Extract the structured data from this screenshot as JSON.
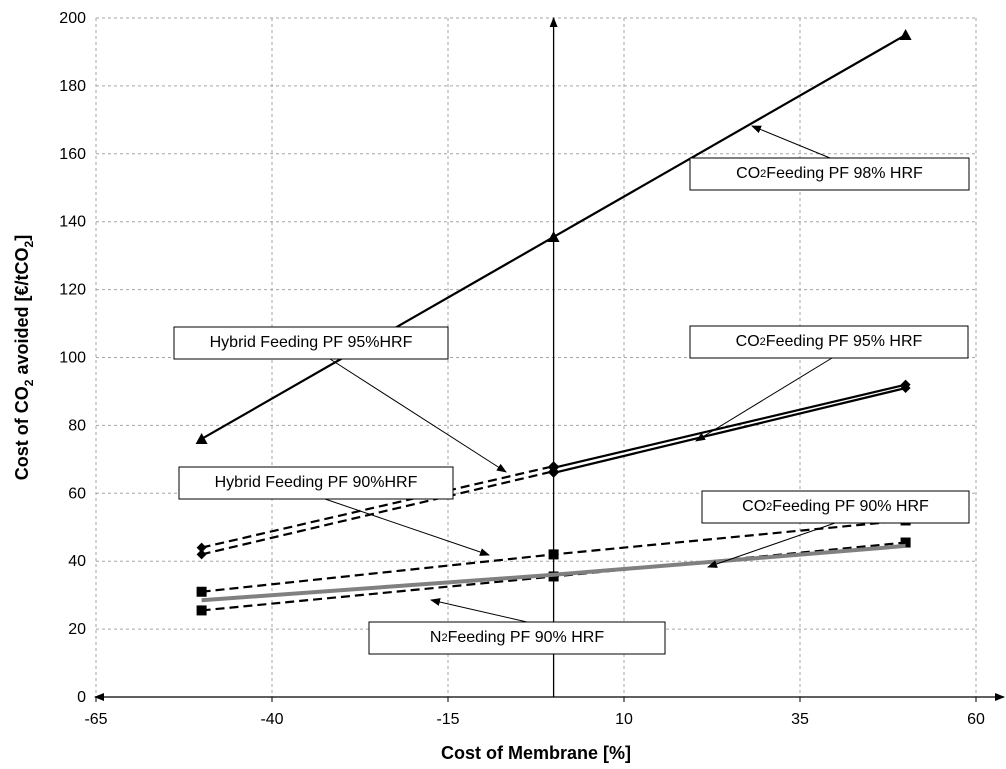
{
  "chart_data": {
    "type": "line",
    "xlabel": "Cost of Membrane [%]",
    "ylabel": "Cost of CO2 avoided [€/tCO2]",
    "xlim": [
      -65,
      60
    ],
    "ylim": [
      0,
      200
    ],
    "x_ticks": [
      -65,
      -40,
      -15,
      10,
      35,
      60
    ],
    "y_ticks": [
      0,
      20,
      40,
      60,
      80,
      100,
      120,
      140,
      160,
      180,
      200
    ],
    "grid": true,
    "series": [
      {
        "name": "CO2 Feeding PF 98% HRF",
        "x": [
          -50,
          0,
          50
        ],
        "y": [
          76,
          135.5,
          195
        ],
        "marker": "triangle",
        "dash": "solid",
        "color": "#000000"
      },
      {
        "name": "CO2 Feeding PF 95% HRF",
        "x": [
          0,
          50
        ],
        "y": [
          67.5,
          92
        ],
        "marker": "diamond",
        "dash": "solid",
        "color": "#000000"
      },
      {
        "name": "",
        "x": [
          0,
          50
        ],
        "y": [
          66,
          91
        ],
        "marker": "diamond",
        "dash": "solid",
        "color": "#000000"
      },
      {
        "name": "Hybrid Feeding PF 95%HRF",
        "x": [
          -50,
          0
        ],
        "y": [
          44,
          68
        ],
        "marker": "diamond",
        "dash": "dashed",
        "color": "#000000"
      },
      {
        "name": "",
        "x": [
          -50,
          0
        ],
        "y": [
          42,
          66.5
        ],
        "marker": "diamond",
        "dash": "dashed",
        "color": "#000000"
      },
      {
        "name": "Hybrid Feeding PF 90%HRF",
        "x": [
          -50,
          0,
          50
        ],
        "y": [
          31,
          42,
          52
        ],
        "marker": "square",
        "dash": "dashed",
        "color": "#000000"
      },
      {
        "name": "CO2 Feeding PF 90% HRF",
        "x": [
          -50,
          0,
          50
        ],
        "y": [
          25.5,
          35.5,
          45.5
        ],
        "marker": "square",
        "dash": "dashed",
        "color": "#000000"
      },
      {
        "name": "N2 Feeding PF 90% HRF",
        "x": [
          -50,
          0,
          50
        ],
        "y": [
          28.5,
          36,
          44.5
        ],
        "marker": "none",
        "dash": "solid",
        "color": "#808080"
      }
    ],
    "annotations": [
      {
        "html": "CO<sub>2</sub> Feeding PF 98% HRF"
      },
      {
        "html": "CO<sub>2</sub> Feeding PF 95% HRF"
      },
      {
        "html": "Hybrid Feeding PF 95%HRF"
      },
      {
        "html": "Hybrid Feeding PF 90%HRF"
      },
      {
        "html": "CO<sub>2</sub> Feeding PF 90% HRF"
      },
      {
        "html": "N<sub>2</sub> Feeding PF 90% HRF"
      }
    ]
  }
}
